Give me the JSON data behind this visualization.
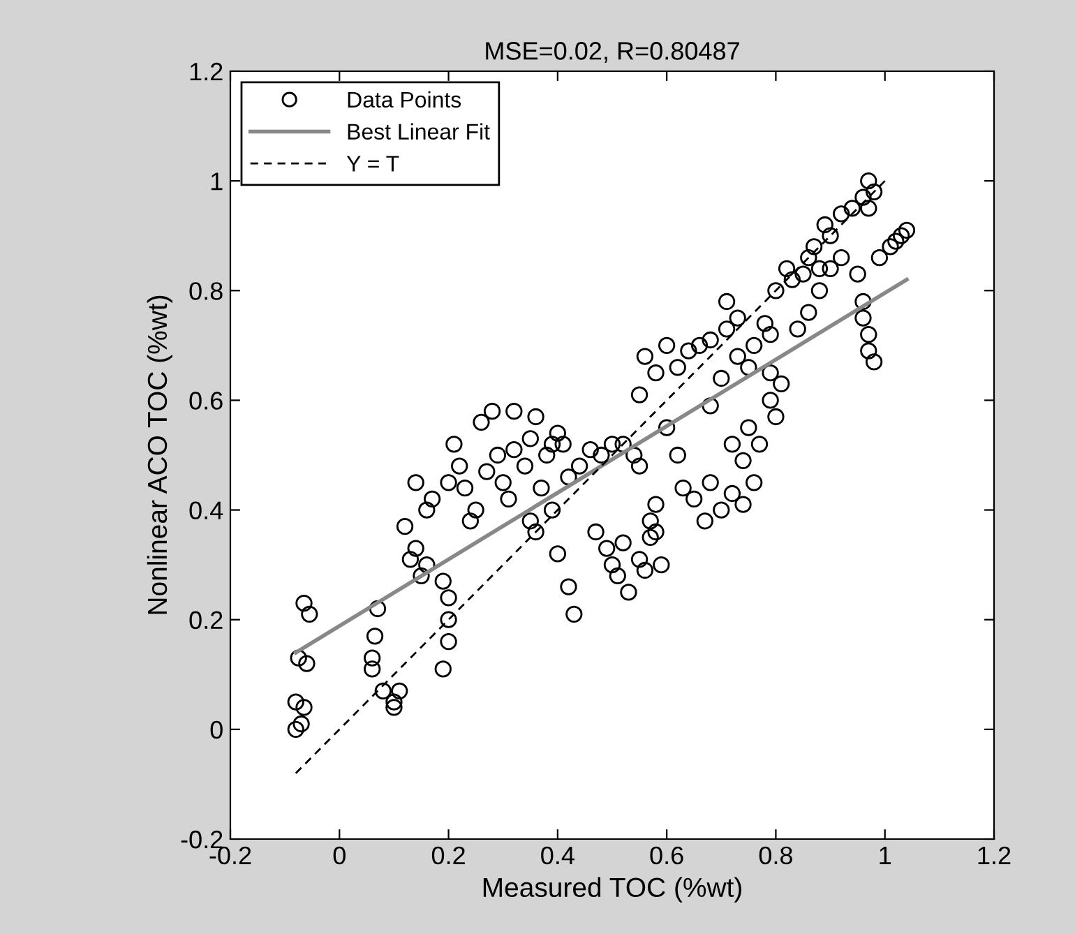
{
  "chart_data": {
    "type": "scatter",
    "title": "MSE=0.02, R=0.80487",
    "xlabel": "Measured TOC (%wt)",
    "ylabel": "Nonlinear ACO TOC (%wt)",
    "xlim": [
      -0.2,
      1.2
    ],
    "ylim": [
      -0.2,
      1.2
    ],
    "xticks": [
      {
        "value": -0.2,
        "label": "-0.2"
      },
      0,
      0.2,
      0.4,
      0.6,
      0.8,
      1,
      1.2
    ],
    "yticks": [
      {
        "value": -0.2,
        "label": "-0.2"
      },
      0,
      0.2,
      0.4,
      0.6,
      0.8,
      1,
      1.2
    ],
    "grid": false,
    "legend": "top left",
    "series": [
      {
        "name": "Data Points",
        "marker": "circle",
        "color": "#000000",
        "x": [
          -0.08,
          -0.07,
          -0.08,
          -0.065,
          -0.075,
          -0.06,
          -0.065,
          -0.055,
          0.06,
          0.06,
          0.065,
          0.07,
          0.08,
          0.1,
          0.11,
          0.1,
          0.12,
          0.13,
          0.14,
          0.14,
          0.15,
          0.16,
          0.16,
          0.17,
          0.19,
          0.2,
          0.2,
          0.2,
          0.19,
          0.2,
          0.21,
          0.22,
          0.23,
          0.24,
          0.25,
          0.26,
          0.28,
          0.27,
          0.29,
          0.3,
          0.31,
          0.32,
          0.32,
          0.34,
          0.35,
          0.36,
          0.37,
          0.38,
          0.39,
          0.4,
          0.41,
          0.36,
          0.35,
          0.39,
          0.4,
          0.42,
          0.43,
          0.42,
          0.44,
          0.46,
          0.48,
          0.5,
          0.52,
          0.54,
          0.55,
          0.47,
          0.49,
          0.5,
          0.51,
          0.52,
          0.53,
          0.55,
          0.56,
          0.57,
          0.57,
          0.58,
          0.58,
          0.59,
          0.55,
          0.56,
          0.58,
          0.6,
          0.62,
          0.64,
          0.66,
          0.68,
          0.6,
          0.62,
          0.63,
          0.65,
          0.67,
          0.68,
          0.7,
          0.72,
          0.74,
          0.76,
          0.72,
          0.74,
          0.75,
          0.77,
          0.68,
          0.7,
          0.71,
          0.71,
          0.73,
          0.73,
          0.75,
          0.76,
          0.78,
          0.79,
          0.8,
          0.79,
          0.8,
          0.81,
          0.79,
          0.82,
          0.83,
          0.85,
          0.86,
          0.87,
          0.88,
          0.89,
          0.9,
          0.92,
          0.94,
          0.96,
          0.97,
          0.98,
          0.97,
          0.84,
          0.86,
          0.88,
          0.9,
          0.92,
          0.95,
          0.96,
          0.96,
          0.97,
          0.97,
          0.98,
          0.99,
          1.01,
          1.03,
          1.04,
          1.02
        ],
        "values": [
          0.0,
          0.01,
          0.05,
          0.04,
          0.13,
          0.12,
          0.23,
          0.21,
          0.11,
          0.13,
          0.17,
          0.22,
          0.07,
          0.04,
          0.07,
          0.05,
          0.37,
          0.31,
          0.33,
          0.45,
          0.28,
          0.3,
          0.4,
          0.42,
          0.11,
          0.16,
          0.2,
          0.24,
          0.27,
          0.45,
          0.52,
          0.48,
          0.44,
          0.38,
          0.4,
          0.56,
          0.58,
          0.47,
          0.5,
          0.45,
          0.42,
          0.58,
          0.51,
          0.48,
          0.53,
          0.57,
          0.44,
          0.5,
          0.52,
          0.54,
          0.52,
          0.36,
          0.38,
          0.4,
          0.32,
          0.26,
          0.21,
          0.46,
          0.48,
          0.51,
          0.5,
          0.52,
          0.52,
          0.5,
          0.48,
          0.36,
          0.33,
          0.3,
          0.28,
          0.34,
          0.25,
          0.31,
          0.29,
          0.35,
          0.38,
          0.36,
          0.41,
          0.3,
          0.61,
          0.68,
          0.65,
          0.7,
          0.66,
          0.69,
          0.7,
          0.71,
          0.55,
          0.5,
          0.44,
          0.42,
          0.38,
          0.45,
          0.4,
          0.43,
          0.41,
          0.45,
          0.52,
          0.49,
          0.55,
          0.52,
          0.59,
          0.64,
          0.73,
          0.78,
          0.75,
          0.68,
          0.66,
          0.7,
          0.74,
          0.72,
          0.8,
          0.6,
          0.57,
          0.63,
          0.65,
          0.84,
          0.82,
          0.83,
          0.86,
          0.88,
          0.84,
          0.92,
          0.9,
          0.94,
          0.95,
          0.97,
          1.0,
          0.98,
          0.95,
          0.73,
          0.76,
          0.8,
          0.84,
          0.86,
          0.83,
          0.78,
          0.75,
          0.72,
          0.69,
          0.67,
          0.86,
          0.88,
          0.9,
          0.91,
          0.89
        ]
      },
      {
        "name": "Best Linear Fit",
        "type": "line",
        "color": "#888888",
        "line_style": "solid",
        "x": [
          -0.08,
          1.04
        ],
        "values": [
          0.14,
          0.82
        ]
      },
      {
        "name": "Y = T",
        "type": "line",
        "color": "#000000",
        "line_style": "dashed",
        "x": [
          -0.08,
          1.0
        ],
        "values": [
          -0.08,
          1.0
        ]
      }
    ]
  }
}
